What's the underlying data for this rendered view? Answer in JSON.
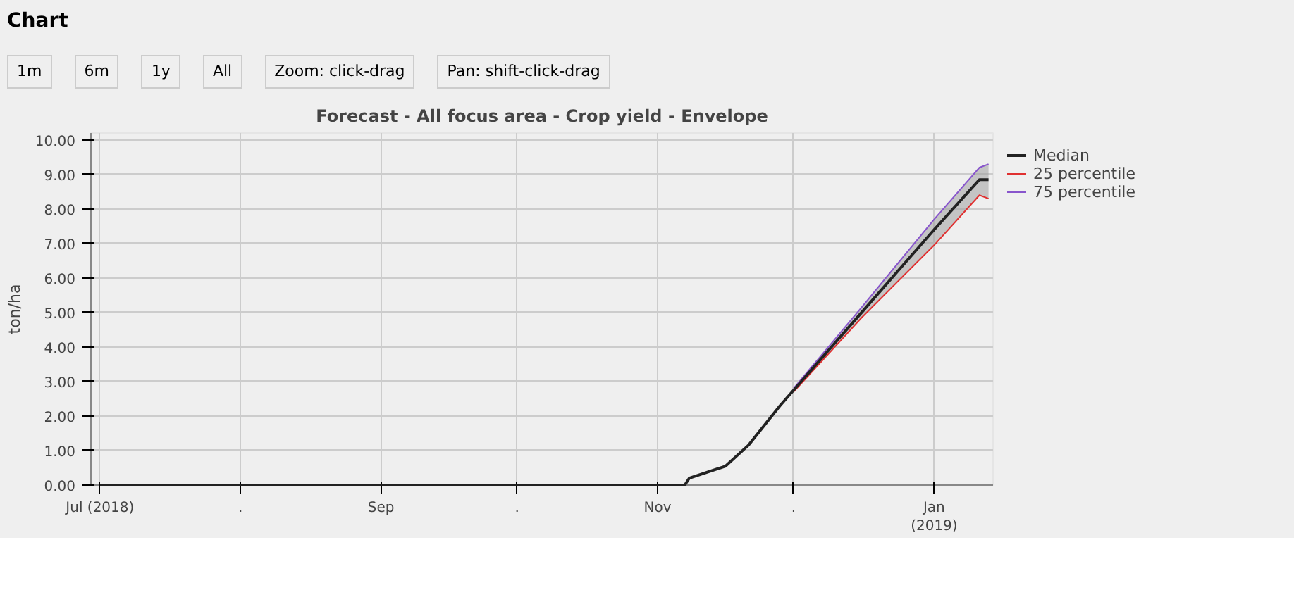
{
  "chart_data": {
    "type": "line",
    "title": "Forecast - All focus area - Crop yield - Envelope",
    "ylabel": "ton/ha",
    "annotations": [
      "Chart",
      "1m",
      "6m",
      "1y",
      "All",
      "Zoom: click-drag",
      "Pan: shift-click-drag"
    ],
    "x": [
      "2018-07-01",
      "2018-11-07",
      "2018-11-08",
      "2018-11-16",
      "2018-11-21",
      "2018-11-28",
      "2018-12-01",
      "2018-12-16",
      "2019-01-01",
      "2019-01-11",
      "2019-01-13"
    ],
    "series": [
      {
        "name": "Median",
        "color": "#222222",
        "values": [
          0,
          0,
          0.2,
          0.55,
          1.15,
          2.3,
          2.75,
          5.0,
          7.4,
          8.85,
          8.85
        ],
        "lower": [
          0,
          0,
          0.2,
          0.55,
          1.15,
          2.3,
          2.7,
          4.85,
          6.95,
          8.4,
          8.3
        ],
        "upper": [
          0,
          0,
          0.2,
          0.55,
          1.15,
          2.3,
          2.8,
          5.15,
          7.7,
          9.2,
          9.3
        ]
      },
      {
        "name": "25 percentile",
        "color": "#e03030",
        "values": [
          null,
          null,
          null,
          null,
          null,
          null,
          2.7,
          4.85,
          6.95,
          8.4,
          8.3
        ]
      },
      {
        "name": "75 percentile",
        "color": "#8855cc",
        "values": [
          null,
          null,
          null,
          null,
          null,
          null,
          2.8,
          5.15,
          7.7,
          9.2,
          9.3
        ]
      }
    ],
    "xlim": [
      "2018-06-29",
      "2019-01-14"
    ],
    "ylim": [
      0,
      10.2
    ],
    "xticks": [
      {
        "value": "2018-07-01",
        "label": "Jul (2018)"
      },
      {
        "value": "2018-08-01",
        "label": "."
      },
      {
        "value": "2018-09-01",
        "label": "Sep"
      },
      {
        "value": "2018-10-01",
        "label": "."
      },
      {
        "value": "2018-11-01",
        "label": "Nov"
      },
      {
        "value": "2018-12-01",
        "label": "."
      },
      {
        "value": "2019-01-01",
        "label": "Jan\n(2019)"
      }
    ],
    "yticks": [
      {
        "value": 0,
        "label": "0.00"
      },
      {
        "value": 1,
        "label": "1.00"
      },
      {
        "value": 2,
        "label": "2.00"
      },
      {
        "value": 3,
        "label": "3.00"
      },
      {
        "value": 4,
        "label": "4.00"
      },
      {
        "value": 5,
        "label": "5.00"
      },
      {
        "value": 6,
        "label": "6.00"
      },
      {
        "value": 7,
        "label": "7.00"
      },
      {
        "value": 8,
        "label": "8.00"
      },
      {
        "value": 9,
        "label": "9.00"
      },
      {
        "value": 10,
        "label": "10.00"
      }
    ],
    "grid": true,
    "legend": "right",
    "marker": "none",
    "line_style": "solid"
  }
}
